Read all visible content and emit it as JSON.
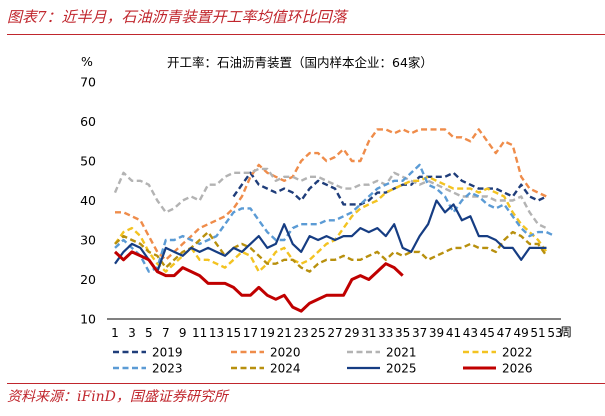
{
  "header": {
    "title": "图表7：近半月，石油沥青装置开工率均值环比回落"
  },
  "footer": {
    "source": "资料来源：iFinD，国盛证券研究所"
  },
  "chart_data": {
    "type": "line",
    "title": "开工率：石油沥青装置（国内样本企业：64家）",
    "y_unit": "%",
    "x_unit": "周",
    "ylim": [
      10,
      70
    ],
    "yticks": [
      10,
      20,
      30,
      40,
      50,
      60,
      70
    ],
    "xlim": [
      1,
      53
    ],
    "xticks": [
      1,
      3,
      5,
      7,
      9,
      11,
      13,
      15,
      17,
      19,
      21,
      23,
      25,
      27,
      29,
      31,
      33,
      35,
      37,
      39,
      41,
      43,
      45,
      47,
      49,
      51,
      53
    ],
    "grid": false,
    "legend": "bottom",
    "series": [
      {
        "name": "2019",
        "color": "#1f3d7a",
        "dash": "dashed",
        "width": 2.4,
        "x": [
          15,
          16,
          17,
          18,
          19,
          20,
          21,
          22,
          23,
          24,
          25,
          26,
          27,
          28,
          29,
          30,
          31,
          32,
          33,
          34,
          35,
          36,
          37,
          38,
          39,
          40,
          41,
          42,
          43,
          44,
          45,
          46,
          47,
          48,
          49,
          50,
          51,
          52
        ],
        "y": [
          41,
          44,
          47,
          44,
          43,
          42,
          43,
          42,
          40,
          43,
          45,
          44,
          43,
          39,
          39,
          39,
          40,
          42,
          42,
          43,
          44,
          44,
          46,
          46,
          46,
          46,
          47,
          45,
          44,
          43,
          43,
          43,
          42,
          41,
          44,
          41,
          40,
          41
        ]
      },
      {
        "name": "2020",
        "color": "#ef8c4a",
        "dash": "dashed",
        "width": 2.4,
        "x": [
          1,
          2,
          3,
          4,
          5,
          6,
          7,
          8,
          9,
          10,
          11,
          12,
          13,
          14,
          15,
          16,
          17,
          18,
          19,
          20,
          21,
          22,
          23,
          24,
          25,
          26,
          27,
          28,
          29,
          30,
          31,
          32,
          33,
          34,
          35,
          36,
          37,
          38,
          39,
          40,
          41,
          42,
          43,
          44,
          45,
          46,
          47,
          48,
          49,
          50,
          51,
          52
        ],
        "y": [
          37,
          37,
          36,
          35,
          31,
          27,
          25,
          27,
          29,
          31,
          33,
          34,
          35,
          36,
          38,
          41,
          46,
          49,
          47,
          46,
          45,
          46,
          50,
          52,
          52,
          50,
          51,
          53,
          50,
          50,
          55,
          58,
          58,
          57,
          58,
          57,
          58,
          58,
          58,
          58,
          56,
          56,
          55,
          58,
          55,
          52,
          55,
          54,
          46,
          43,
          42,
          41
        ]
      },
      {
        "name": "2021",
        "color": "#b3b3b3",
        "dash": "dashed",
        "width": 2.4,
        "x": [
          1,
          2,
          3,
          4,
          5,
          6,
          7,
          8,
          9,
          10,
          11,
          12,
          13,
          14,
          15,
          16,
          17,
          18,
          19,
          20,
          21,
          22,
          23,
          24,
          25,
          26,
          27,
          28,
          29,
          30,
          31,
          32,
          33,
          34,
          35,
          36,
          37,
          38,
          39,
          40,
          41,
          42,
          43,
          44,
          45,
          46,
          47,
          48,
          49,
          50,
          51,
          52
        ],
        "y": [
          42,
          47,
          45,
          45,
          44,
          40,
          37,
          38,
          40,
          41,
          40,
          44,
          44,
          46,
          47,
          47,
          47,
          48,
          48,
          45,
          46,
          46,
          45,
          46,
          46,
          45,
          44,
          43,
          43,
          44,
          44,
          45,
          44,
          47,
          46,
          45,
          44,
          45,
          44,
          43,
          42,
          41,
          41,
          41,
          41,
          40,
          40,
          40,
          41,
          37,
          34,
          33
        ]
      },
      {
        "name": "2022",
        "color": "#f3c321",
        "dash": "dashed",
        "width": 2.4,
        "x": [
          1,
          2,
          3,
          4,
          5,
          6,
          7,
          8,
          9,
          10,
          11,
          12,
          13,
          14,
          15,
          16,
          17,
          18,
          19,
          20,
          21,
          22,
          23,
          24,
          25,
          26,
          27,
          28,
          29,
          30,
          31,
          32,
          33,
          34,
          35,
          36,
          37,
          38,
          39,
          40,
          41,
          42,
          43,
          44,
          45,
          46,
          47,
          48,
          49,
          50,
          51,
          52
        ],
        "y": [
          29,
          32,
          33,
          31,
          27,
          24,
          22,
          24,
          26,
          28,
          25,
          25,
          24,
          23,
          25,
          27,
          26,
          22,
          24,
          27,
          28,
          25,
          24,
          25,
          27,
          29,
          30,
          33,
          36,
          38,
          39,
          40,
          42,
          43,
          44,
          45,
          45,
          46,
          45,
          44,
          43,
          43,
          43,
          42,
          43,
          42,
          41,
          37,
          34,
          32,
          30,
          27
        ]
      },
      {
        "name": "2023",
        "color": "#5b9bd5",
        "dash": "dashed",
        "width": 2.4,
        "x": [
          1,
          2,
          3,
          4,
          5,
          6,
          7,
          8,
          9,
          10,
          11,
          12,
          13,
          14,
          15,
          16,
          17,
          18,
          19,
          20,
          21,
          22,
          23,
          24,
          25,
          26,
          27,
          28,
          29,
          30,
          31,
          32,
          33,
          34,
          35,
          36,
          37,
          38,
          39,
          40,
          41,
          42,
          43,
          44,
          45,
          46,
          47,
          48,
          49,
          50,
          51,
          52,
          53
        ],
        "y": [
          28,
          30,
          28,
          26,
          22,
          23,
          30,
          30,
          31,
          30,
          29,
          30,
          31,
          34,
          37,
          38,
          38,
          35,
          32,
          30,
          30,
          33,
          34,
          34,
          34,
          35,
          35,
          36,
          37,
          39,
          41,
          43,
          44,
          45,
          45,
          47,
          49,
          44,
          43,
          41,
          37,
          40,
          42,
          41,
          39,
          38,
          39,
          36,
          33,
          31,
          32,
          32,
          31
        ]
      },
      {
        "name": "2024",
        "color": "#b8900e",
        "dash": "dashed",
        "width": 2.4,
        "x": [
          1,
          2,
          3,
          4,
          5,
          6,
          7,
          8,
          9,
          10,
          11,
          12,
          13,
          14,
          15,
          16,
          17,
          18,
          19,
          20,
          21,
          22,
          23,
          24,
          25,
          26,
          27,
          28,
          29,
          30,
          31,
          32,
          33,
          34,
          35,
          36,
          37,
          38,
          39,
          40,
          41,
          42,
          43,
          44,
          45,
          46,
          47,
          48,
          49,
          50,
          51,
          52
        ],
        "y": [
          29,
          31,
          30,
          29,
          27,
          26,
          23,
          25,
          27,
          28,
          30,
          32,
          29,
          26,
          28,
          29,
          28,
          26,
          24,
          24,
          25,
          25,
          23,
          22,
          24,
          25,
          25,
          26,
          25,
          25,
          26,
          27,
          25,
          27,
          26,
          27,
          27,
          25,
          26,
          27,
          28,
          28,
          29,
          28,
          28,
          27,
          30,
          32,
          31,
          29,
          29,
          26
        ]
      },
      {
        "name": "2025",
        "color": "#163d83",
        "dash": "solid",
        "width": 2.2,
        "x": [
          1,
          2,
          3,
          4,
          5,
          6,
          7,
          8,
          9,
          10,
          11,
          12,
          13,
          14,
          15,
          16,
          17,
          18,
          19,
          20,
          21,
          22,
          23,
          24,
          25,
          26,
          27,
          28,
          29,
          30,
          31,
          32,
          33,
          34,
          35,
          36,
          37,
          38,
          39,
          40,
          41,
          42,
          43,
          44,
          45,
          46,
          47,
          48,
          49,
          50,
          51,
          52
        ],
        "y": [
          24,
          27,
          29,
          28,
          25,
          22,
          28,
          27,
          26,
          28,
          27,
          28,
          27,
          26,
          28,
          27,
          29,
          31,
          28,
          29,
          34,
          29,
          27,
          31,
          30,
          31,
          30,
          31,
          31,
          33,
          32,
          33,
          31,
          34,
          28,
          27,
          31,
          34,
          40,
          37,
          39,
          35,
          36,
          31,
          31,
          30,
          28,
          28,
          25,
          28,
          28,
          28
        ]
      },
      {
        "name": "2026",
        "color": "#c00000",
        "dash": "solid",
        "width": 3.0,
        "x": [
          1,
          2,
          3,
          4,
          5,
          6,
          7,
          8,
          9,
          10,
          11,
          12,
          13,
          14,
          15,
          16,
          17,
          18,
          19,
          20,
          21,
          22,
          23,
          24,
          25,
          26,
          27,
          28,
          29,
          30,
          31,
          32,
          33,
          34,
          35
        ],
        "y": [
          27,
          25,
          27,
          26,
          25,
          22,
          21,
          21,
          23,
          22,
          21,
          19,
          19,
          19,
          18,
          16,
          16,
          18,
          16,
          15,
          16,
          13,
          12,
          14,
          15,
          16,
          16,
          16,
          20,
          21,
          20,
          22,
          24,
          23,
          21
        ]
      }
    ]
  }
}
